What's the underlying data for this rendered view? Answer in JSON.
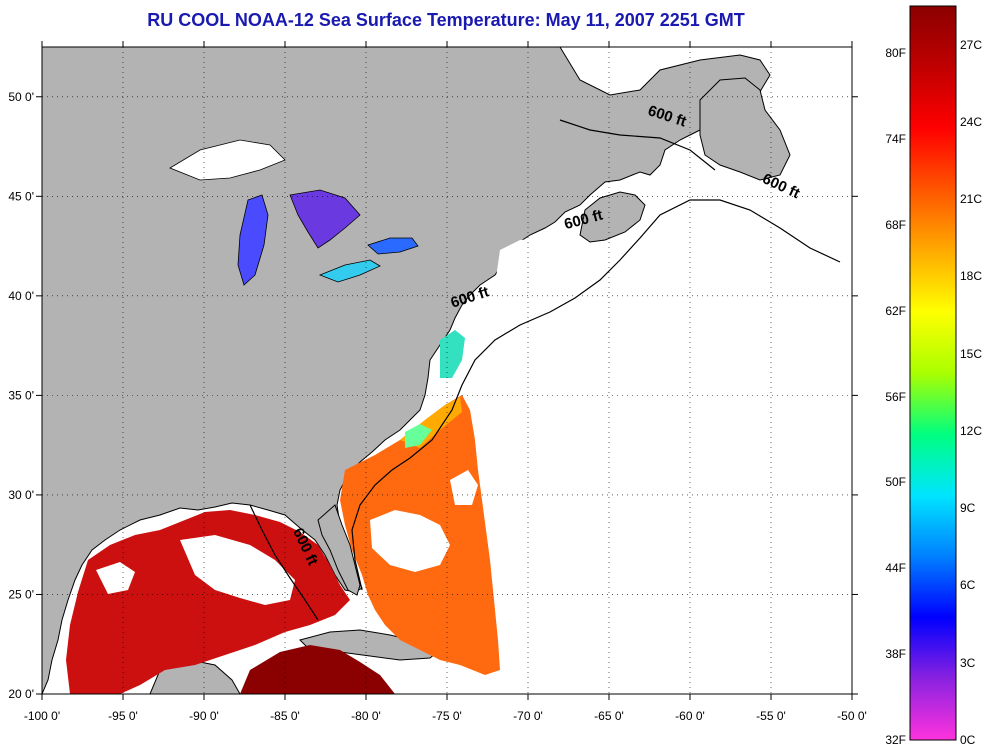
{
  "title": "RU COOL  NOAA-12  Sea Surface Temperature:  May 11, 2007 2251 GMT",
  "map": {
    "lon_range": [
      -100,
      -50
    ],
    "lat_range": [
      20,
      52.5
    ],
    "x_ticks": [
      {
        "lon": -100,
        "label": "-100 0'"
      },
      {
        "lon": -95,
        "label": "-95 0'"
      },
      {
        "lon": -90,
        "label": "-90 0'"
      },
      {
        "lon": -85,
        "label": "-85 0'"
      },
      {
        "lon": -80,
        "label": "-80 0'"
      },
      {
        "lon": -75,
        "label": "-75 0'"
      },
      {
        "lon": -70,
        "label": "-70 0'"
      },
      {
        "lon": -65,
        "label": "-65 0'"
      },
      {
        "lon": -60,
        "label": "-60 0'"
      },
      {
        "lon": -55,
        "label": "-55 0'"
      },
      {
        "lon": -50,
        "label": "-50 0'"
      }
    ],
    "y_ticks": [
      {
        "lat": 20,
        "label": "20 0'"
      },
      {
        "lat": 25,
        "label": "25 0'"
      },
      {
        "lat": 30,
        "label": "30 0'"
      },
      {
        "lat": 35,
        "label": "35 0'"
      },
      {
        "lat": 40,
        "label": "40 0'"
      },
      {
        "lat": 45,
        "label": "45 0'"
      },
      {
        "lat": 50,
        "label": "50 0'"
      }
    ],
    "land_color": "#b3b3b3",
    "no_data_color": "#ffffff",
    "contour_labels": [
      {
        "text": "600 ft",
        "lon": -61.5,
        "lat": 48.8,
        "angle": 18
      },
      {
        "text": "600 ft",
        "lon": -54.5,
        "lat": 45.3,
        "angle": 25
      },
      {
        "text": "600 ft",
        "lon": -66.5,
        "lat": 43.6,
        "angle": -15
      },
      {
        "text": "600 ft",
        "lon": -73.5,
        "lat": 39.7,
        "angle": -18
      },
      {
        "text": "600 ft",
        "lon": -84,
        "lat": 27.3,
        "angle": 65
      }
    ]
  },
  "colorbar": {
    "fahrenheit_labels": [
      "80F",
      "74F",
      "68F",
      "62F",
      "56F",
      "50F",
      "44F",
      "38F",
      "32F"
    ],
    "celsius_labels": [
      "27C",
      "24C",
      "21C",
      "18C",
      "15C",
      "12C",
      "9C",
      "6C",
      "3C",
      "0C"
    ],
    "range_c": [
      0,
      28.5
    ],
    "colors": [
      "#ff33dd",
      "#8a22e0",
      "#0000ff",
      "#0080ff",
      "#00e5ff",
      "#00ff80",
      "#aaff00",
      "#ffff00",
      "#ffaa00",
      "#ff5500",
      "#ff0000",
      "#c00000",
      "#8b0000"
    ]
  }
}
